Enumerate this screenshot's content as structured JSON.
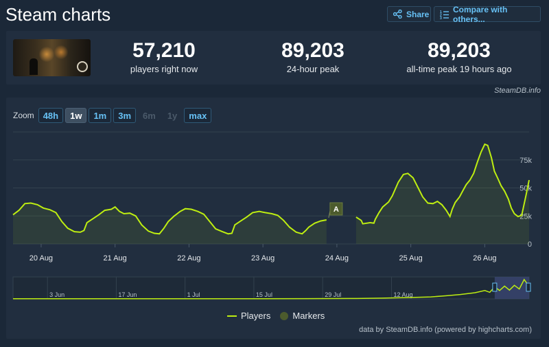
{
  "header": {
    "title": "Steam charts",
    "share_label": "Share",
    "compare_label": "Compare with others..."
  },
  "stats": [
    {
      "value": "57,210",
      "label": "players right now"
    },
    {
      "value": "89,203",
      "label": "24-hour peak"
    },
    {
      "value": "89,203",
      "label": "all-time peak 19 hours ago"
    }
  ],
  "credit_top": "SteamDB.info",
  "zoom": {
    "label": "Zoom",
    "buttons": [
      {
        "label": "48h",
        "state": "enabled"
      },
      {
        "label": "1w",
        "state": "active"
      },
      {
        "label": "1m",
        "state": "enabled"
      },
      {
        "label": "3m",
        "state": "enabled"
      },
      {
        "label": "6m",
        "state": "disabled"
      },
      {
        "label": "1y",
        "state": "disabled"
      },
      {
        "label": "max",
        "state": "enabled"
      }
    ]
  },
  "legend": {
    "players": "Players",
    "markers": "Markers"
  },
  "credit_bottom": "data by SteamDB.info (powered by highcharts.com)",
  "colors": {
    "series": "#beee11",
    "marker": "#4c5b2d",
    "grid": "#33424f",
    "navigator_mask": "#38446e"
  },
  "chart_data": [
    {
      "type": "area",
      "series": [
        {
          "name": "Players"
        }
      ],
      "x_tick_labels": [
        "20 Aug",
        "21 Aug",
        "22 Aug",
        "23 Aug",
        "24 Aug",
        "25 Aug",
        "26 Aug"
      ],
      "x_range": [
        19.62,
        26.6
      ],
      "ylim": [
        0,
        100000
      ],
      "y_tick_labels": [
        "0",
        "25k",
        "50k",
        "75k"
      ],
      "y_ticks": [
        0,
        25000,
        50000,
        75000
      ],
      "grid": true,
      "markers": [
        {
          "label": "A",
          "x": 24.0
        }
      ],
      "segments": [
        [
          [
            19.62,
            26000
          ],
          [
            19.7,
            30000
          ],
          [
            19.78,
            36000
          ],
          [
            19.86,
            36500
          ],
          [
            19.95,
            35000
          ],
          [
            20.03,
            32000
          ],
          [
            20.12,
            30500
          ],
          [
            20.2,
            28000
          ],
          [
            20.28,
            20000
          ],
          [
            20.36,
            14000
          ],
          [
            20.45,
            11000
          ],
          [
            20.53,
            10500
          ],
          [
            20.58,
            12000
          ],
          [
            20.62,
            19000
          ],
          [
            20.7,
            22500
          ],
          [
            20.78,
            26000
          ],
          [
            20.86,
            30000
          ],
          [
            20.95,
            31000
          ],
          [
            21.0,
            33000
          ],
          [
            21.06,
            29000
          ],
          [
            21.12,
            27000
          ],
          [
            21.2,
            27500
          ],
          [
            21.28,
            25000
          ],
          [
            21.36,
            17000
          ],
          [
            21.45,
            11500
          ],
          [
            21.53,
            9500
          ],
          [
            21.6,
            9000
          ],
          [
            21.66,
            14000
          ],
          [
            21.72,
            20000
          ],
          [
            21.8,
            25000
          ],
          [
            21.88,
            29000
          ],
          [
            21.95,
            31500
          ],
          [
            22.03,
            31000
          ],
          [
            22.12,
            29000
          ],
          [
            22.2,
            26500
          ],
          [
            22.28,
            20000
          ],
          [
            22.36,
            13500
          ],
          [
            22.45,
            11000
          ],
          [
            22.53,
            9000
          ],
          [
            22.58,
            9500
          ],
          [
            22.62,
            17000
          ],
          [
            22.7,
            20500
          ],
          [
            22.78,
            24000
          ],
          [
            22.86,
            28000
          ],
          [
            22.95,
            29000
          ],
          [
            23.03,
            28000
          ],
          [
            23.12,
            27000
          ],
          [
            23.2,
            25500
          ],
          [
            23.28,
            21000
          ],
          [
            23.36,
            15000
          ],
          [
            23.45,
            10500
          ],
          [
            23.53,
            9000
          ],
          [
            23.58,
            12000
          ],
          [
            23.62,
            15000
          ],
          [
            23.7,
            18500
          ],
          [
            23.78,
            20500
          ],
          [
            23.86,
            21500
          ]
        ],
        [
          [
            24.26,
            24000
          ],
          [
            24.33,
            21000
          ],
          [
            24.35,
            18000
          ],
          [
            24.45,
            19000
          ],
          [
            24.5,
            18500
          ],
          [
            24.52,
            22000
          ],
          [
            24.57,
            28000
          ],
          [
            24.62,
            33000
          ],
          [
            24.7,
            37500
          ],
          [
            24.75,
            43000
          ],
          [
            24.83,
            55000
          ],
          [
            24.9,
            62000
          ],
          [
            24.96,
            63000
          ],
          [
            25.03,
            59000
          ],
          [
            25.1,
            50000
          ],
          [
            25.16,
            42000
          ],
          [
            25.23,
            36500
          ],
          [
            25.3,
            36000
          ],
          [
            25.36,
            38000
          ],
          [
            25.42,
            35000
          ],
          [
            25.48,
            30000
          ],
          [
            25.53,
            24500
          ],
          [
            25.56,
            31000
          ],
          [
            25.6,
            37000
          ],
          [
            25.66,
            42000
          ],
          [
            25.7,
            47000
          ],
          [
            25.75,
            53000
          ],
          [
            25.8,
            57000
          ],
          [
            25.85,
            63000
          ],
          [
            25.9,
            73000
          ],
          [
            25.95,
            82000
          ],
          [
            26.0,
            89000
          ],
          [
            26.04,
            88000
          ],
          [
            26.09,
            77000
          ],
          [
            26.13,
            65000
          ],
          [
            26.18,
            58000
          ],
          [
            26.22,
            52000
          ],
          [
            26.27,
            47000
          ],
          [
            26.32,
            40000
          ],
          [
            26.36,
            32000
          ],
          [
            26.4,
            27000
          ],
          [
            26.45,
            24500
          ],
          [
            26.5,
            25500
          ],
          [
            26.56,
            44000
          ],
          [
            26.6,
            57000
          ]
        ]
      ]
    },
    {
      "type": "line",
      "series": [
        {
          "name": "Navigator"
        }
      ],
      "x_tick_labels": [
        "3 Jun",
        "17 Jun",
        "1 Jul",
        "15 Jul",
        "29 Jul",
        "12 Aug"
      ],
      "x_range": [
        0,
        105
      ],
      "ylim": [
        0,
        100000
      ],
      "values": [
        [
          0,
          800
        ],
        [
          10,
          800
        ],
        [
          20,
          900
        ],
        [
          30,
          900
        ],
        [
          40,
          900
        ],
        [
          50,
          1000
        ],
        [
          60,
          1200
        ],
        [
          70,
          2000
        ],
        [
          75,
          3500
        ],
        [
          80,
          6000
        ],
        [
          85,
          9000
        ],
        [
          88,
          14000
        ],
        [
          91,
          20000
        ],
        [
          94,
          28000
        ],
        [
          96,
          38000
        ],
        [
          97,
          30000
        ],
        [
          98,
          55000
        ],
        [
          99,
          38000
        ],
        [
          100,
          58000
        ],
        [
          101,
          40000
        ],
        [
          102,
          62000
        ],
        [
          103,
          45000
        ],
        [
          104,
          88000
        ],
        [
          105,
          57000
        ]
      ],
      "selected_range": [
        98,
        105
      ]
    }
  ]
}
